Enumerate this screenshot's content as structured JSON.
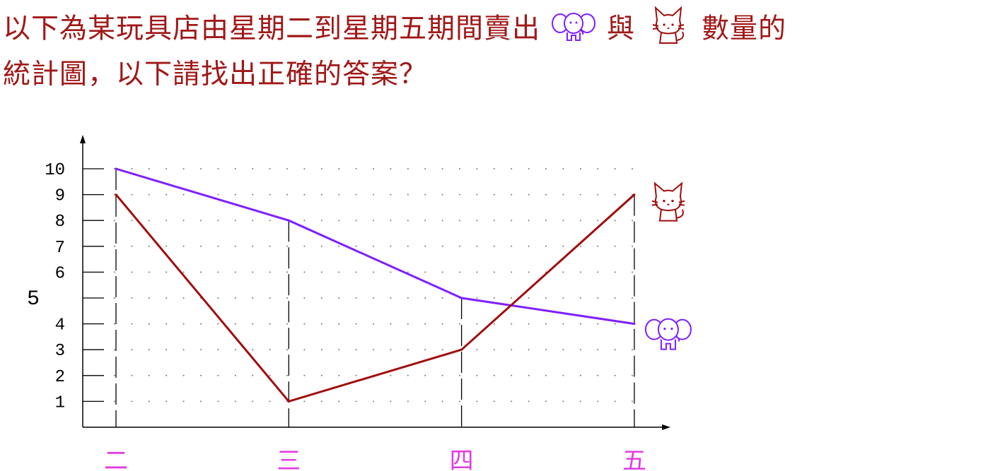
{
  "question": {
    "line1_a": "以下為某玩具店由星期二到星期五期間賣出",
    "line1_b": "與",
    "line1_c": "數量的",
    "line2": "統計圖，以下請找出正確的答案？"
  },
  "icons": {
    "series_a": "elephant-icon",
    "series_b": "cat-icon"
  },
  "colors": {
    "question_text": "#a01818",
    "series_a": "#7f1fff",
    "series_b": "#a00d0d",
    "day_labels": "#e23be2",
    "axis": "#000000"
  },
  "chart_data": {
    "type": "line",
    "categories": [
      "二",
      "三",
      "四",
      "五"
    ],
    "series": [
      {
        "icon": "elephant-icon",
        "color": "#7f1fff",
        "values": [
          10,
          8,
          5,
          4
        ]
      },
      {
        "icon": "cat-icon",
        "color": "#a00d0d",
        "values": [
          9,
          1,
          3,
          9
        ]
      }
    ],
    "y_ticks": [
      "1",
      "2",
      "3",
      "4",
      "5",
      "6",
      "7",
      "8",
      "9",
      "10"
    ],
    "ylim": [
      0,
      10
    ],
    "grid": "dotted"
  }
}
